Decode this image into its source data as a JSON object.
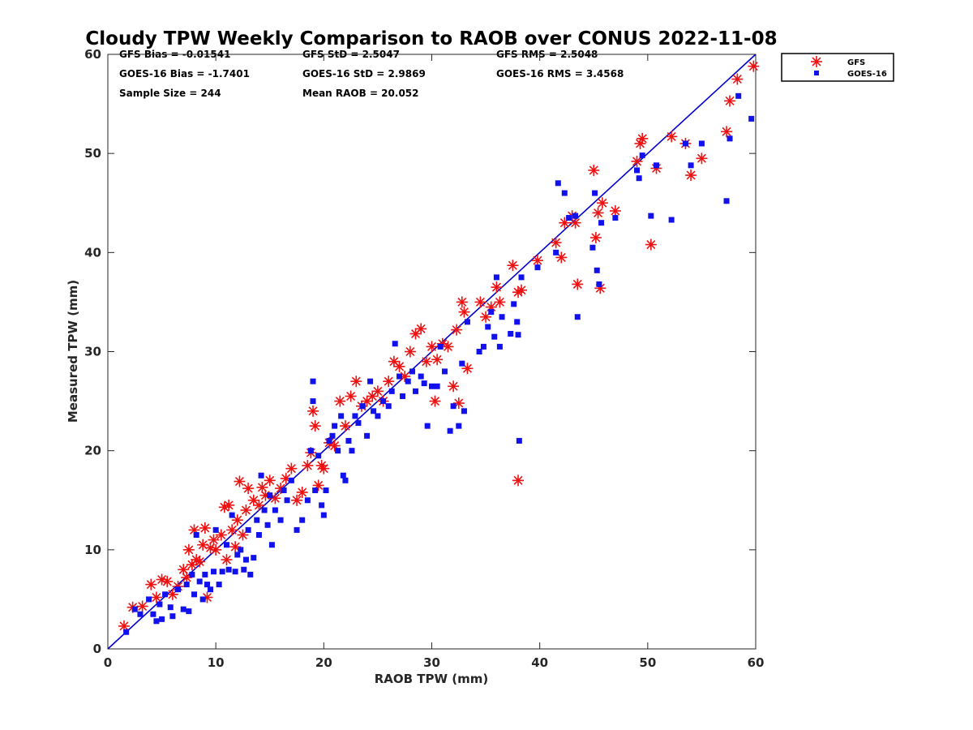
{
  "chart_data": {
    "type": "scatter",
    "title": "Cloudy TPW Weekly Comparison to RAOB over CONUS 2022-11-08",
    "xlabel": "RAOB TPW (mm)",
    "ylabel": "Measured TPW (mm)",
    "xlim": [
      0,
      60
    ],
    "ylim": [
      0,
      60
    ],
    "xticks": [
      0,
      10,
      20,
      30,
      40,
      50,
      60
    ],
    "yticks": [
      0,
      10,
      20,
      30,
      40,
      50,
      60
    ],
    "grid": false,
    "legend_position": "outside-top-right",
    "one_to_one_line": {
      "from": [
        0,
        0
      ],
      "to": [
        60,
        60
      ],
      "color": "#0000cc"
    },
    "stats": [
      "GFS Bias = -0.01541",
      "GFS StD = 2.5047",
      "GFS RMS = 2.5048",
      "GOES-16 Bias = -1.7401",
      "GOES-16 StD = 2.9869",
      "GOES-16 RMS = 3.4568",
      "Sample Size = 244",
      "Mean RAOB = 20.052"
    ],
    "series": [
      {
        "name": "GFS",
        "marker": "asterisk",
        "color": "#ee1111",
        "points": [
          [
            1.5,
            2.3
          ],
          [
            2.3,
            4.2
          ],
          [
            3.2,
            4.3
          ],
          [
            4.0,
            6.5
          ],
          [
            4.5,
            5.2
          ],
          [
            5.0,
            7.0
          ],
          [
            5.5,
            6.8
          ],
          [
            6.0,
            5.5
          ],
          [
            6.5,
            6.3
          ],
          [
            7.0,
            8.0
          ],
          [
            7.3,
            7.2
          ],
          [
            7.5,
            10.0
          ],
          [
            7.8,
            8.5
          ],
          [
            8.0,
            12.0
          ],
          [
            8.2,
            9.0
          ],
          [
            8.5,
            8.8
          ],
          [
            8.8,
            10.5
          ],
          [
            9.0,
            12.2
          ],
          [
            9.2,
            5.2
          ],
          [
            9.5,
            10.2
          ],
          [
            9.8,
            11.0
          ],
          [
            10.0,
            10.0
          ],
          [
            10.5,
            11.5
          ],
          [
            10.8,
            14.3
          ],
          [
            11.0,
            9.0
          ],
          [
            11.2,
            14.5
          ],
          [
            11.5,
            12.0
          ],
          [
            11.8,
            10.3
          ],
          [
            12.0,
            13.0
          ],
          [
            12.2,
            16.9
          ],
          [
            12.5,
            11.5
          ],
          [
            12.8,
            14.0
          ],
          [
            13.0,
            16.2
          ],
          [
            13.5,
            15.0
          ],
          [
            14.0,
            14.5
          ],
          [
            14.3,
            16.3
          ],
          [
            14.6,
            15.5
          ],
          [
            15.0,
            17.0
          ],
          [
            15.5,
            15.2
          ],
          [
            16.0,
            16.2
          ],
          [
            16.5,
            17.2
          ],
          [
            17.0,
            18.2
          ],
          [
            17.5,
            15.0
          ],
          [
            18.0,
            15.8
          ],
          [
            18.5,
            18.5
          ],
          [
            18.8,
            19.8
          ],
          [
            19.0,
            24.0
          ],
          [
            19.2,
            22.5
          ],
          [
            19.5,
            16.5
          ],
          [
            19.8,
            18.5
          ],
          [
            20.0,
            18.2
          ],
          [
            20.5,
            20.8
          ],
          [
            21.0,
            20.5
          ],
          [
            21.5,
            25.0
          ],
          [
            22.0,
            22.5
          ],
          [
            22.5,
            25.5
          ],
          [
            23.0,
            27.0
          ],
          [
            23.5,
            24.5
          ],
          [
            24.0,
            25.0
          ],
          [
            24.5,
            25.5
          ],
          [
            25.0,
            26.0
          ],
          [
            25.5,
            25.0
          ],
          [
            26.0,
            27.0
          ],
          [
            26.5,
            29.0
          ],
          [
            27.0,
            28.5
          ],
          [
            27.5,
            27.5
          ],
          [
            28.0,
            30.0
          ],
          [
            28.5,
            31.8
          ],
          [
            29.0,
            32.3
          ],
          [
            29.5,
            29.0
          ],
          [
            30.0,
            30.5
          ],
          [
            30.3,
            25.0
          ],
          [
            30.5,
            29.2
          ],
          [
            31.0,
            30.8
          ],
          [
            31.5,
            30.5
          ],
          [
            32.0,
            26.5
          ],
          [
            32.3,
            32.2
          ],
          [
            32.5,
            24.8
          ],
          [
            32.8,
            35.0
          ],
          [
            33.0,
            34.0
          ],
          [
            33.3,
            28.3
          ],
          [
            34.5,
            35.0
          ],
          [
            35.0,
            33.5
          ],
          [
            35.5,
            34.5
          ],
          [
            36.0,
            36.5
          ],
          [
            36.3,
            35.0
          ],
          [
            37.5,
            38.7
          ],
          [
            38.0,
            36.0
          ],
          [
            38.3,
            36.2
          ],
          [
            38.0,
            17.0
          ],
          [
            39.8,
            39.2
          ],
          [
            41.5,
            41.0
          ],
          [
            42.0,
            39.5
          ],
          [
            42.3,
            43.0
          ],
          [
            43.0,
            43.7
          ],
          [
            43.3,
            43.0
          ],
          [
            43.5,
            36.8
          ],
          [
            45.0,
            48.3
          ],
          [
            45.2,
            41.5
          ],
          [
            45.4,
            44.0
          ],
          [
            45.6,
            36.4
          ],
          [
            45.8,
            45.0
          ],
          [
            47.0,
            44.2
          ],
          [
            49.0,
            49.2
          ],
          [
            49.3,
            51.0
          ],
          [
            49.5,
            51.5
          ],
          [
            50.3,
            40.8
          ],
          [
            50.8,
            48.5
          ],
          [
            52.2,
            51.7
          ],
          [
            53.5,
            51.0
          ],
          [
            54.0,
            47.8
          ],
          [
            55.0,
            49.5
          ],
          [
            57.3,
            52.2
          ],
          [
            57.6,
            55.3
          ],
          [
            58.3,
            57.5
          ],
          [
            59.8,
            58.8
          ]
        ]
      },
      {
        "name": "GOES-16",
        "marker": "square",
        "color": "#1111ee",
        "points": [
          [
            1.7,
            1.7
          ],
          [
            2.5,
            4.0
          ],
          [
            3.0,
            3.5
          ],
          [
            3.8,
            5.0
          ],
          [
            4.2,
            3.5
          ],
          [
            4.5,
            2.8
          ],
          [
            4.8,
            4.5
          ],
          [
            5.0,
            3.0
          ],
          [
            5.3,
            5.5
          ],
          [
            5.8,
            4.2
          ],
          [
            6.0,
            3.3
          ],
          [
            6.5,
            6.0
          ],
          [
            7.0,
            4.0
          ],
          [
            7.3,
            6.5
          ],
          [
            7.5,
            3.8
          ],
          [
            7.8,
            7.5
          ],
          [
            8.0,
            5.5
          ],
          [
            8.2,
            11.5
          ],
          [
            8.5,
            6.8
          ],
          [
            8.8,
            5.0
          ],
          [
            9.0,
            7.5
          ],
          [
            9.2,
            6.5
          ],
          [
            9.5,
            6.0
          ],
          [
            9.8,
            7.8
          ],
          [
            10.0,
            12.0
          ],
          [
            10.3,
            6.5
          ],
          [
            10.6,
            7.8
          ],
          [
            11.0,
            10.5
          ],
          [
            11.2,
            8.0
          ],
          [
            11.5,
            13.5
          ],
          [
            11.8,
            7.8
          ],
          [
            12.0,
            9.5
          ],
          [
            12.3,
            10.0
          ],
          [
            12.6,
            8.0
          ],
          [
            12.8,
            9.0
          ],
          [
            13.0,
            12.0
          ],
          [
            13.2,
            7.5
          ],
          [
            13.5,
            9.2
          ],
          [
            13.8,
            13.0
          ],
          [
            14.0,
            11.5
          ],
          [
            14.2,
            17.5
          ],
          [
            14.5,
            14.0
          ],
          [
            14.8,
            12.5
          ],
          [
            15.0,
            15.5
          ],
          [
            15.2,
            10.5
          ],
          [
            15.5,
            14.0
          ],
          [
            16.0,
            13.0
          ],
          [
            16.3,
            16.0
          ],
          [
            16.6,
            15.0
          ],
          [
            17.0,
            17.0
          ],
          [
            17.5,
            12.0
          ],
          [
            18.0,
            13.0
          ],
          [
            18.5,
            15.0
          ],
          [
            18.8,
            20.0
          ],
          [
            19.0,
            27.0
          ],
          [
            19.0,
            25.0
          ],
          [
            19.2,
            16.0
          ],
          [
            19.5,
            19.5
          ],
          [
            19.8,
            14.5
          ],
          [
            20.0,
            13.5
          ],
          [
            20.2,
            16.0
          ],
          [
            20.5,
            21.0
          ],
          [
            20.8,
            21.5
          ],
          [
            21.0,
            22.5
          ],
          [
            21.3,
            20.0
          ],
          [
            21.6,
            23.5
          ],
          [
            21.8,
            17.5
          ],
          [
            22.0,
            17.0
          ],
          [
            22.3,
            21.0
          ],
          [
            22.6,
            20.0
          ],
          [
            22.9,
            23.5
          ],
          [
            23.2,
            22.8
          ],
          [
            23.6,
            24.5
          ],
          [
            24.0,
            21.5
          ],
          [
            24.3,
            27.0
          ],
          [
            24.6,
            24.0
          ],
          [
            25.0,
            23.5
          ],
          [
            25.5,
            25.0
          ],
          [
            26.0,
            24.5
          ],
          [
            26.3,
            26.0
          ],
          [
            26.6,
            30.8
          ],
          [
            27.0,
            27.5
          ],
          [
            27.3,
            25.5
          ],
          [
            27.8,
            27.0
          ],
          [
            28.2,
            28.0
          ],
          [
            28.5,
            26.0
          ],
          [
            29.0,
            27.5
          ],
          [
            29.3,
            26.8
          ],
          [
            29.6,
            22.5
          ],
          [
            30.0,
            26.5
          ],
          [
            30.5,
            26.5
          ],
          [
            30.8,
            30.5
          ],
          [
            31.2,
            28.0
          ],
          [
            31.7,
            22.0
          ],
          [
            32.0,
            24.5
          ],
          [
            32.5,
            22.5
          ],
          [
            32.8,
            28.8
          ],
          [
            33.0,
            24.0
          ],
          [
            33.3,
            33.0
          ],
          [
            34.4,
            30.0
          ],
          [
            34.8,
            30.5
          ],
          [
            35.2,
            32.5
          ],
          [
            35.5,
            34.0
          ],
          [
            35.8,
            31.5
          ],
          [
            36.0,
            37.5
          ],
          [
            36.3,
            30.5
          ],
          [
            36.5,
            33.5
          ],
          [
            37.3,
            31.8
          ],
          [
            37.6,
            34.8
          ],
          [
            37.9,
            33.0
          ],
          [
            38.0,
            31.7
          ],
          [
            38.1,
            21.0
          ],
          [
            38.3,
            37.5
          ],
          [
            39.8,
            38.5
          ],
          [
            41.5,
            40.0
          ],
          [
            41.7,
            47.0
          ],
          [
            42.3,
            46.0
          ],
          [
            42.7,
            43.5
          ],
          [
            43.3,
            43.7
          ],
          [
            43.5,
            33.5
          ],
          [
            44.9,
            40.5
          ],
          [
            45.1,
            46.0
          ],
          [
            45.3,
            38.2
          ],
          [
            45.5,
            36.8
          ],
          [
            45.7,
            43.0
          ],
          [
            47.0,
            43.5
          ],
          [
            49.0,
            48.3
          ],
          [
            49.2,
            47.5
          ],
          [
            49.5,
            49.8
          ],
          [
            50.3,
            43.7
          ],
          [
            50.8,
            48.8
          ],
          [
            52.2,
            43.3
          ],
          [
            53.5,
            51.0
          ],
          [
            54.0,
            48.8
          ],
          [
            55.0,
            51.0
          ],
          [
            57.3,
            45.2
          ],
          [
            57.6,
            51.5
          ],
          [
            58.4,
            55.8
          ],
          [
            59.6,
            53.5
          ]
        ]
      }
    ]
  }
}
